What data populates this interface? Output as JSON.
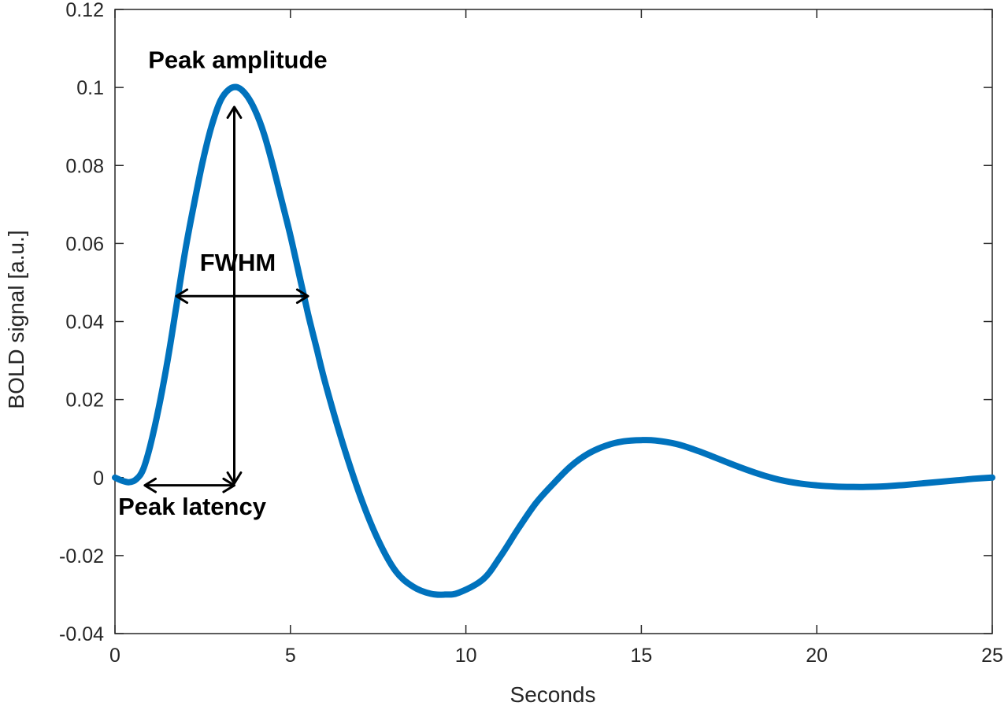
{
  "chart_data": {
    "type": "line",
    "title": "",
    "xlabel": "Seconds",
    "ylabel": "BOLD signal [a.u.]",
    "xlim": [
      0,
      25
    ],
    "ylim": [
      -0.04,
      0.12
    ],
    "xticks": [
      0,
      5,
      10,
      15,
      20,
      25
    ],
    "yticks": [
      -0.04,
      -0.02,
      0,
      0.02,
      0.04,
      0.06,
      0.08,
      0.1,
      0.12
    ],
    "xtick_labels": [
      "0",
      "5",
      "10",
      "15",
      "20",
      "25"
    ],
    "ytick_labels": [
      "-0.04",
      "-0.02",
      "0",
      "0.02",
      "0.04",
      "0.06",
      "0.08",
      "0.1",
      "0.12"
    ],
    "grid": false,
    "series": [
      {
        "color": "#0072BD",
        "x": [
          0,
          0.2,
          0.4,
          0.6,
          0.8,
          1.0,
          1.25,
          1.5,
          1.75,
          2.0,
          2.25,
          2.5,
          2.75,
          3.0,
          3.25,
          3.5,
          3.75,
          4.0,
          4.25,
          4.5,
          4.75,
          5.0,
          5.25,
          5.5,
          5.75,
          6.0,
          6.5,
          7.0,
          7.5,
          8.0,
          8.5,
          9.0,
          9.4,
          9.8,
          10.5,
          11.0,
          11.5,
          12.0,
          12.5,
          13.0,
          13.5,
          14.0,
          14.5,
          15.0,
          15.4,
          16.0,
          16.5,
          17.0,
          17.5,
          18.0,
          18.5,
          19.0,
          19.5,
          20.0,
          20.5,
          21.0,
          21.4,
          22.0,
          22.5,
          23.0,
          23.5,
          24.0,
          24.5,
          25.0
        ],
        "y": [
          0,
          -0.0008,
          -0.0012,
          -0.0005,
          0.002,
          0.008,
          0.018,
          0.03,
          0.044,
          0.058,
          0.07,
          0.081,
          0.09,
          0.0965,
          0.0995,
          0.1,
          0.098,
          0.094,
          0.088,
          0.08,
          0.071,
          0.062,
          0.052,
          0.042,
          0.033,
          0.024,
          0.0085,
          -0.005,
          -0.016,
          -0.024,
          -0.028,
          -0.0298,
          -0.03,
          -0.0295,
          -0.026,
          -0.02,
          -0.013,
          -0.0065,
          -0.0015,
          0.003,
          0.0062,
          0.0082,
          0.0093,
          0.0096,
          0.0095,
          0.0086,
          0.0072,
          0.0055,
          0.0037,
          0.002,
          0.0005,
          -0.0007,
          -0.0015,
          -0.002,
          -0.0023,
          -0.0024,
          -0.0024,
          -0.0022,
          -0.0019,
          -0.0015,
          -0.0011,
          -0.0007,
          -0.0003,
          0
        ]
      }
    ],
    "annotations": [
      {
        "text": "Peak amplitude",
        "x": 3.5,
        "y": 0.105
      },
      {
        "text": "FWHM",
        "x": 3.5,
        "y": 0.053
      },
      {
        "text": "Peak latency",
        "x": 2.2,
        "y": -0.0095
      }
    ],
    "arrows": [
      {
        "name": "peak-amplitude-arrow",
        "from": [
          3.4,
          -0.0015
        ],
        "to": [
          3.4,
          0.095
        ]
      },
      {
        "name": "fwhm-arrow",
        "from": [
          1.75,
          0.0465
        ],
        "to": [
          5.5,
          0.0465
        ]
      },
      {
        "name": "peak-latency-arrow",
        "from": [
          0.85,
          -0.002
        ],
        "to": [
          3.4,
          -0.002
        ]
      }
    ]
  }
}
